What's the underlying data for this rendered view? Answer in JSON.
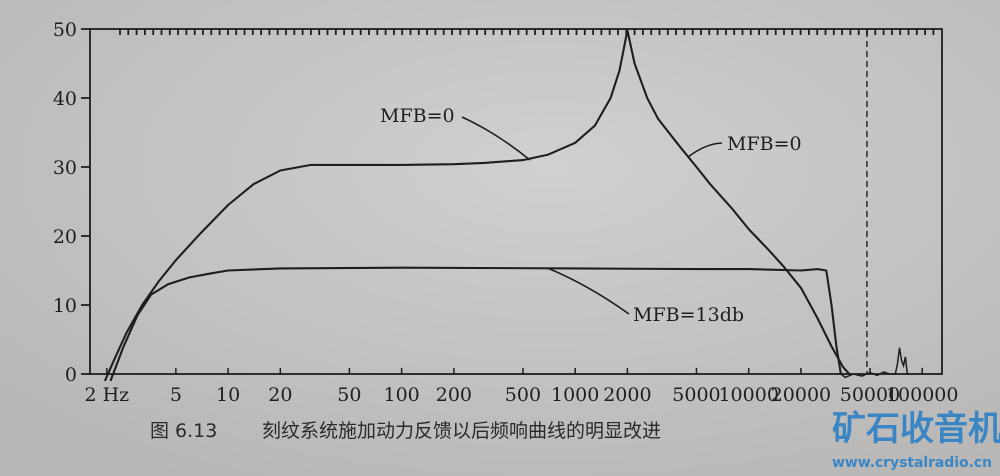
{
  "caption": {
    "figure_number": "图 6.13",
    "text": "刻纹系统施加动力反馈以后频响曲线的明显改进"
  },
  "watermark": {
    "title": "矿石收音机",
    "url": "www.crystalradio.cn",
    "color": "#3a86c4"
  },
  "colors": {
    "paper": "#c9c7c6",
    "ink": "#1f1e1e"
  },
  "chart_data": {
    "type": "line",
    "xscale": "log",
    "xlim": [
      1.6,
      130000
    ],
    "ylim": [
      0,
      50
    ],
    "grid": false,
    "x_ticks": [
      {
        "value": 2,
        "label": "2 Hz"
      },
      {
        "value": 5,
        "label": "5"
      },
      {
        "value": 10,
        "label": "10"
      },
      {
        "value": 20,
        "label": "20"
      },
      {
        "value": 50,
        "label": "50"
      },
      {
        "value": 100,
        "label": "100"
      },
      {
        "value": 200,
        "label": "200"
      },
      {
        "value": 500,
        "label": "500"
      },
      {
        "value": 1000,
        "label": "1000"
      },
      {
        "value": 2000,
        "label": "2000"
      },
      {
        "value": 5000,
        "label": "5000"
      },
      {
        "value": 10000,
        "label": "10000"
      },
      {
        "value": 20000,
        "label": "20000"
      },
      {
        "value": 50000,
        "label": "50000"
      },
      {
        "value": 100000,
        "label": "100000"
      }
    ],
    "y_ticks": [
      0,
      10,
      20,
      30,
      40,
      50
    ],
    "series": [
      {
        "name": "MFB=0",
        "points": [
          [
            1.95,
            -1
          ],
          [
            2.2,
            2
          ],
          [
            2.6,
            6
          ],
          [
            3.2,
            10
          ],
          [
            4,
            13.5
          ],
          [
            5,
            16.5
          ],
          [
            7,
            20.5
          ],
          [
            10,
            24.5
          ],
          [
            14,
            27.5
          ],
          [
            20,
            29.5
          ],
          [
            30,
            30.3
          ],
          [
            50,
            30.3
          ],
          [
            100,
            30.3
          ],
          [
            200,
            30.4
          ],
          [
            300,
            30.6
          ],
          [
            500,
            31
          ],
          [
            700,
            31.8
          ],
          [
            1000,
            33.5
          ],
          [
            1300,
            36
          ],
          [
            1600,
            40
          ],
          [
            1800,
            44
          ],
          [
            2000,
            49.8
          ],
          [
            2200,
            45
          ],
          [
            2600,
            40
          ],
          [
            3000,
            37
          ],
          [
            4000,
            33
          ],
          [
            5000,
            30
          ],
          [
            6000,
            27.5
          ],
          [
            8000,
            24
          ],
          [
            10000,
            21
          ],
          [
            13000,
            18
          ],
          [
            16000,
            15.5
          ],
          [
            20000,
            12.5
          ],
          [
            25000,
            8
          ],
          [
            30000,
            4
          ],
          [
            35000,
            1
          ],
          [
            38000,
            0
          ]
        ]
      },
      {
        "name": "MFB=13db",
        "points": [
          [
            2.1,
            -1
          ],
          [
            2.5,
            4
          ],
          [
            3,
            8.5
          ],
          [
            3.6,
            11.5
          ],
          [
            4.5,
            13
          ],
          [
            6,
            14
          ],
          [
            8,
            14.6
          ],
          [
            10,
            15
          ],
          [
            20,
            15.3
          ],
          [
            100,
            15.4
          ],
          [
            1000,
            15.3
          ],
          [
            5000,
            15.2
          ],
          [
            10000,
            15.2
          ],
          [
            20000,
            15
          ],
          [
            25000,
            15.2
          ],
          [
            28000,
            15
          ],
          [
            30000,
            10
          ],
          [
            32000,
            4
          ],
          [
            34000,
            0
          ]
        ]
      }
    ],
    "noise_trace": [
      [
        34000,
        0
      ],
      [
        36000,
        -0.5
      ],
      [
        40000,
        0
      ],
      [
        45000,
        -0.3
      ],
      [
        50000,
        0.2
      ],
      [
        55000,
        -0.2
      ],
      [
        60000,
        0.3
      ],
      [
        65000,
        0
      ],
      [
        70000,
        0
      ],
      [
        72000,
        1.5
      ],
      [
        74000,
        3.8
      ],
      [
        76000,
        2
      ],
      [
        78000,
        1.2
      ],
      [
        80000,
        2.5
      ],
      [
        82000,
        0
      ],
      [
        85000,
        0
      ]
    ],
    "annotations": [
      {
        "text": "MFB=0",
        "series": "MFB=0",
        "point": [
          550,
          31
        ]
      },
      {
        "text": "MFB=0",
        "series": "MFB=0",
        "point": [
          4500,
          31.5
        ]
      },
      {
        "text": "MFB=13db",
        "series": "MFB=13db",
        "point": [
          700,
          15.3
        ]
      }
    ],
    "dashed_marker_x": 48000
  }
}
